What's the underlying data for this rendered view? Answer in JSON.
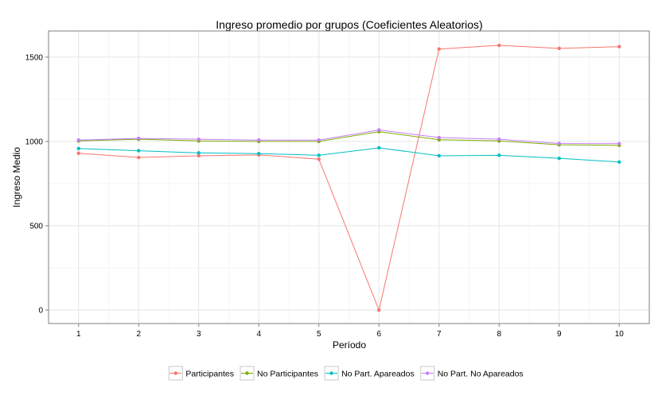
{
  "chart_data": {
    "type": "line",
    "title": "Ingreso promedio por grupos (Coeficientes Aleatorios)",
    "xlabel": "Período",
    "ylabel": "Ingreso Medio",
    "x": [
      1,
      2,
      3,
      4,
      5,
      6,
      7,
      8,
      9,
      10
    ],
    "xlim": [
      0.5,
      10.5
    ],
    "ylim": [
      -80,
      1655
    ],
    "yticks": [
      0,
      500,
      1000,
      1500
    ],
    "grid": true,
    "legend_position": "bottom",
    "series": [
      {
        "name": "Participantes",
        "color": "#F8766D",
        "values": [
          930,
          905,
          915,
          920,
          895,
          0,
          1548,
          1570,
          1552,
          1562
        ]
      },
      {
        "name": "No Participantes",
        "color": "#7CAE00",
        "values": [
          1003,
          1013,
          1003,
          1000,
          1000,
          1058,
          1010,
          1003,
          980,
          977
        ]
      },
      {
        "name": "No Part. Apareados",
        "color": "#00BFC4",
        "values": [
          958,
          945,
          932,
          928,
          918,
          962,
          915,
          918,
          900,
          878
        ]
      },
      {
        "name": "No Part. No Apareados",
        "color": "#C77CFF",
        "values": [
          1008,
          1018,
          1013,
          1008,
          1008,
          1068,
          1023,
          1013,
          988,
          987
        ]
      }
    ]
  }
}
